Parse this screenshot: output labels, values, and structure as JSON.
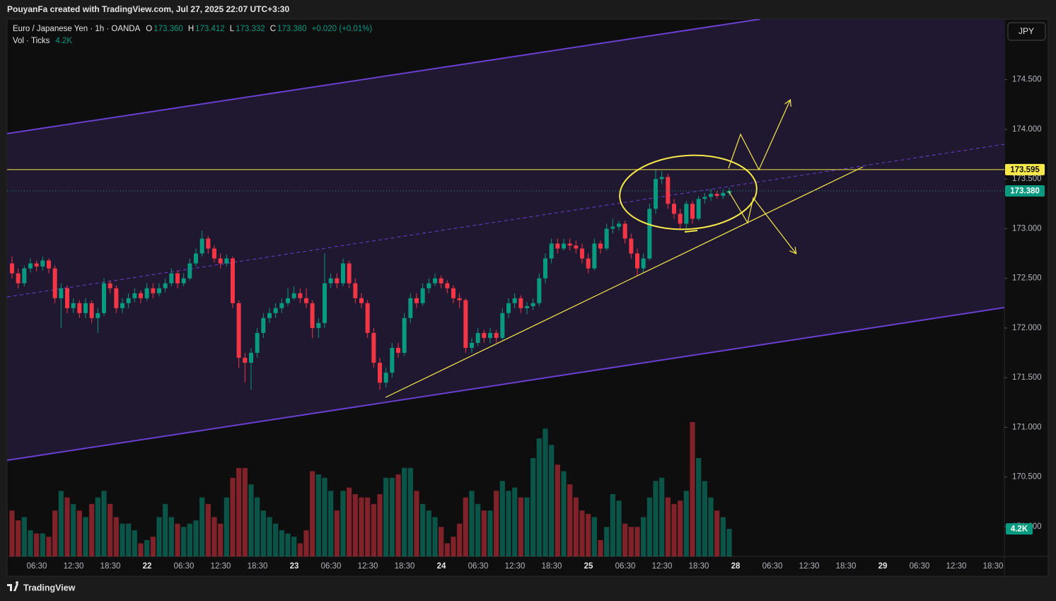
{
  "chart_data": {
    "type": "candlestick",
    "attribution": "PouyanFa created with TradingView.com, Jul 27, 2025 22:07 UTC+3:30",
    "title": "Euro / Japanese Yen · 1h · OANDA",
    "ohlc_legend": [
      {
        "key": "O",
        "value": 173.36,
        "label": "173.360"
      },
      {
        "key": "H",
        "value": 173.412,
        "label": "173.412"
      },
      {
        "key": "L",
        "value": 173.332,
        "label": "173.332"
      },
      {
        "key": "C",
        "value": 173.38,
        "label": "173.380"
      }
    ],
    "change_label": "+0.020 (+0.01%)",
    "currency": "JPY",
    "brand": "TradingView",
    "up_color": "#089981",
    "down_color": "#f23645",
    "ylim": [
      169.7,
      175.11
    ],
    "yticks": [
      {
        "value": 170,
        "label": "170.000"
      },
      {
        "value": 170.5,
        "label": "170.500"
      },
      {
        "value": 171,
        "label": "171.000"
      },
      {
        "value": 171.5,
        "label": "171.500"
      },
      {
        "value": 172,
        "label": "172.000"
      },
      {
        "value": 172.5,
        "label": "172.500"
      },
      {
        "value": 173,
        "label": "173.000"
      },
      {
        "value": 173.5,
        "label": "173.500"
      },
      {
        "value": 174,
        "label": "174.000"
      },
      {
        "value": 174.5,
        "label": "174.500"
      }
    ],
    "x_labels": [
      "06:30",
      "12:30",
      "18:30",
      "22",
      "06:30",
      "12:30",
      "18:30",
      "23",
      "06:30",
      "12:30",
      "18:30",
      "24",
      "06:30",
      "12:30",
      "18:30",
      "25",
      "06:30",
      "12:30",
      "18:30",
      "28",
      "06:30",
      "12:30",
      "18:30",
      "29",
      "06:30",
      "12:30",
      "18:30"
    ],
    "horizontal_line": {
      "value": 173.595,
      "color": "#f7e94a"
    },
    "candles": [
      [
        172.65,
        172.72,
        172.5,
        172.55
      ],
      [
        172.55,
        172.6,
        172.4,
        172.45
      ],
      [
        172.45,
        172.63,
        172.42,
        172.6
      ],
      [
        172.6,
        172.7,
        172.56,
        172.65
      ],
      [
        172.65,
        172.68,
        172.57,
        172.62
      ],
      [
        172.62,
        172.72,
        172.58,
        172.68
      ],
      [
        172.68,
        172.7,
        172.55,
        172.6
      ],
      [
        172.6,
        172.63,
        172.25,
        172.3
      ],
      [
        172.3,
        172.45,
        172.0,
        172.4
      ],
      [
        172.4,
        172.43,
        172.15,
        172.2
      ],
      [
        172.2,
        172.3,
        172.15,
        172.25
      ],
      [
        172.25,
        172.28,
        172.1,
        172.15
      ],
      [
        172.15,
        172.3,
        172.1,
        172.25
      ],
      [
        172.25,
        172.28,
        172.05,
        172.1
      ],
      [
        172.1,
        172.2,
        171.95,
        172.15
      ],
      [
        172.15,
        172.5,
        172.12,
        172.45
      ],
      [
        172.45,
        172.48,
        172.35,
        172.4
      ],
      [
        172.4,
        172.43,
        172.15,
        172.2
      ],
      [
        172.2,
        172.3,
        172.15,
        172.25
      ],
      [
        172.25,
        172.35,
        172.2,
        172.3
      ],
      [
        172.3,
        172.4,
        172.26,
        172.35
      ],
      [
        172.35,
        172.38,
        172.25,
        172.3
      ],
      [
        172.3,
        172.45,
        172.27,
        172.4
      ],
      [
        172.4,
        172.45,
        172.3,
        172.35
      ],
      [
        172.35,
        172.45,
        172.32,
        172.4
      ],
      [
        172.4,
        172.5,
        172.36,
        172.45
      ],
      [
        172.45,
        172.6,
        172.42,
        172.55
      ],
      [
        172.55,
        172.58,
        172.4,
        172.45
      ],
      [
        172.45,
        172.55,
        172.42,
        172.5
      ],
      [
        172.5,
        172.7,
        172.48,
        172.65
      ],
      [
        172.65,
        172.8,
        172.62,
        172.75
      ],
      [
        172.75,
        172.98,
        172.72,
        172.9
      ],
      [
        172.9,
        172.93,
        172.75,
        172.8
      ],
      [
        172.8,
        172.83,
        172.66,
        172.7
      ],
      [
        172.7,
        172.75,
        172.6,
        172.65
      ],
      [
        172.65,
        172.74,
        172.62,
        172.7
      ],
      [
        172.7,
        172.72,
        172.2,
        172.25
      ],
      [
        172.25,
        172.28,
        171.6,
        171.7
      ],
      [
        171.7,
        171.75,
        171.45,
        171.65
      ],
      [
        171.65,
        171.8,
        171.38,
        171.75
      ],
      [
        171.75,
        172.0,
        171.7,
        171.95
      ],
      [
        171.95,
        172.15,
        171.9,
        172.1
      ],
      [
        172.1,
        172.2,
        172.05,
        172.15
      ],
      [
        172.15,
        172.25,
        172.1,
        172.2
      ],
      [
        172.2,
        172.3,
        172.15,
        172.25
      ],
      [
        172.25,
        172.4,
        172.22,
        172.3
      ],
      [
        172.3,
        172.42,
        172.28,
        172.35
      ],
      [
        172.35,
        172.4,
        172.25,
        172.3
      ],
      [
        172.3,
        172.4,
        172.2,
        172.25
      ],
      [
        172.25,
        172.28,
        171.9,
        172.0
      ],
      [
        172.0,
        172.1,
        171.9,
        172.05
      ],
      [
        172.05,
        172.75,
        172.0,
        172.45
      ],
      [
        172.45,
        172.55,
        172.4,
        172.5
      ],
      [
        172.5,
        172.55,
        172.4,
        172.45
      ],
      [
        172.45,
        172.7,
        172.42,
        172.65
      ],
      [
        172.65,
        172.68,
        172.4,
        172.45
      ],
      [
        172.45,
        172.5,
        172.25,
        172.3
      ],
      [
        172.3,
        172.35,
        172.2,
        172.25
      ],
      [
        172.25,
        172.28,
        171.9,
        171.95
      ],
      [
        171.95,
        172.0,
        171.6,
        171.65
      ],
      [
        171.65,
        171.7,
        171.38,
        171.45
      ],
      [
        171.45,
        171.6,
        171.4,
        171.55
      ],
      [
        171.55,
        171.85,
        171.5,
        171.8
      ],
      [
        171.8,
        171.85,
        171.7,
        171.75
      ],
      [
        171.75,
        172.15,
        171.72,
        172.1
      ],
      [
        172.1,
        172.35,
        172.05,
        172.3
      ],
      [
        172.3,
        172.35,
        172.2,
        172.25
      ],
      [
        172.25,
        172.45,
        172.22,
        172.4
      ],
      [
        172.4,
        172.5,
        172.35,
        172.45
      ],
      [
        172.45,
        172.55,
        172.42,
        172.5
      ],
      [
        172.5,
        172.53,
        172.4,
        172.45
      ],
      [
        172.45,
        172.48,
        172.35,
        172.4
      ],
      [
        172.4,
        172.43,
        172.25,
        172.3
      ],
      [
        172.3,
        172.35,
        172.2,
        172.28
      ],
      [
        172.28,
        172.3,
        171.75,
        171.8
      ],
      [
        171.8,
        171.9,
        171.75,
        171.85
      ],
      [
        171.85,
        172.0,
        171.82,
        171.95
      ],
      [
        171.95,
        171.98,
        171.85,
        171.9
      ],
      [
        171.9,
        172.0,
        171.85,
        171.95
      ],
      [
        171.95,
        171.98,
        171.85,
        171.9
      ],
      [
        171.9,
        172.2,
        171.88,
        172.15
      ],
      [
        172.15,
        172.3,
        172.1,
        172.25
      ],
      [
        172.25,
        172.35,
        172.2,
        172.3
      ],
      [
        172.3,
        172.33,
        172.15,
        172.2
      ],
      [
        172.2,
        172.26,
        172.14,
        172.22
      ],
      [
        172.22,
        172.3,
        172.18,
        172.25
      ],
      [
        172.25,
        172.55,
        172.22,
        172.5
      ],
      [
        172.5,
        172.75,
        172.45,
        172.7
      ],
      [
        172.7,
        172.9,
        172.65,
        172.85
      ],
      [
        172.85,
        172.9,
        172.75,
        172.8
      ],
      [
        172.8,
        172.9,
        172.78,
        172.85
      ],
      [
        172.85,
        172.9,
        172.78,
        172.83
      ],
      [
        172.83,
        172.88,
        172.75,
        172.8
      ],
      [
        172.8,
        172.85,
        172.65,
        172.7
      ],
      [
        172.7,
        172.75,
        172.55,
        172.6
      ],
      [
        172.6,
        172.9,
        172.58,
        172.85
      ],
      [
        172.85,
        172.88,
        172.75,
        172.8
      ],
      [
        172.8,
        173.05,
        172.78,
        173.0
      ],
      [
        173.0,
        173.1,
        172.95,
        173.02
      ],
      [
        173.02,
        173.08,
        172.98,
        173.05
      ],
      [
        173.05,
        173.08,
        172.85,
        172.9
      ],
      [
        172.9,
        172.95,
        172.7,
        172.75
      ],
      [
        172.75,
        172.8,
        172.52,
        172.6
      ],
      [
        172.6,
        172.75,
        172.55,
        172.7
      ],
      [
        172.7,
        173.25,
        172.68,
        173.2
      ],
      [
        173.2,
        173.6,
        173.15,
        173.5
      ],
      [
        173.5,
        173.58,
        173.45,
        173.52
      ],
      [
        173.52,
        173.55,
        173.2,
        173.25
      ],
      [
        173.25,
        173.3,
        173.1,
        173.15
      ],
      [
        173.15,
        173.2,
        173.0,
        173.05
      ],
      [
        173.05,
        173.28,
        173.0,
        173.25
      ],
      [
        173.25,
        173.28,
        173.05,
        173.1
      ],
      [
        173.1,
        173.33,
        173.08,
        173.3
      ],
      [
        173.3,
        173.36,
        173.25,
        173.32
      ],
      [
        173.32,
        173.4,
        173.28,
        173.35
      ],
      [
        173.35,
        173.38,
        173.3,
        173.33
      ],
      [
        173.33,
        173.4,
        173.3,
        173.36
      ],
      [
        173.36,
        173.412,
        173.332,
        173.38
      ]
    ],
    "volume": {
      "name": "Vol · Ticks",
      "last_label": "4.2K",
      "ylim": [
        0,
        40000
      ],
      "values": [
        7000,
        5500,
        6000,
        4000,
        3500,
        3500,
        3000,
        7000,
        10000,
        9000,
        8000,
        7000,
        6000,
        8000,
        9000,
        10000,
        8000,
        6000,
        5000,
        5000,
        4000,
        2000,
        2500,
        3000,
        6000,
        8000,
        6000,
        5000,
        4500,
        5000,
        5500,
        9000,
        8000,
        6000,
        5000,
        9000,
        12000,
        13500,
        13500,
        11000,
        9000,
        7000,
        6000,
        5000,
        4000,
        3500,
        3000,
        2000,
        4000,
        13000,
        12500,
        12000,
        10000,
        7000,
        10000,
        10500,
        9500,
        9000,
        9000,
        8000,
        9500,
        12000,
        12000,
        12500,
        13500,
        13500,
        10000,
        8000,
        7000,
        6000,
        4500,
        2000,
        3000,
        5000,
        9000,
        10000,
        8000,
        7000,
        7000,
        10000,
        11500,
        10000,
        10500,
        9000,
        9000,
        15000,
        18000,
        19500,
        17000,
        14000,
        13000,
        11000,
        9000,
        7000,
        6500,
        6000,
        2500,
        4500,
        9500,
        8500,
        5000,
        4500,
        4500,
        6000,
        9000,
        11500,
        12000,
        9000,
        8000,
        8500,
        10000,
        20500,
        15000,
        11500,
        9000,
        7000,
        6000,
        4200
      ]
    }
  }
}
